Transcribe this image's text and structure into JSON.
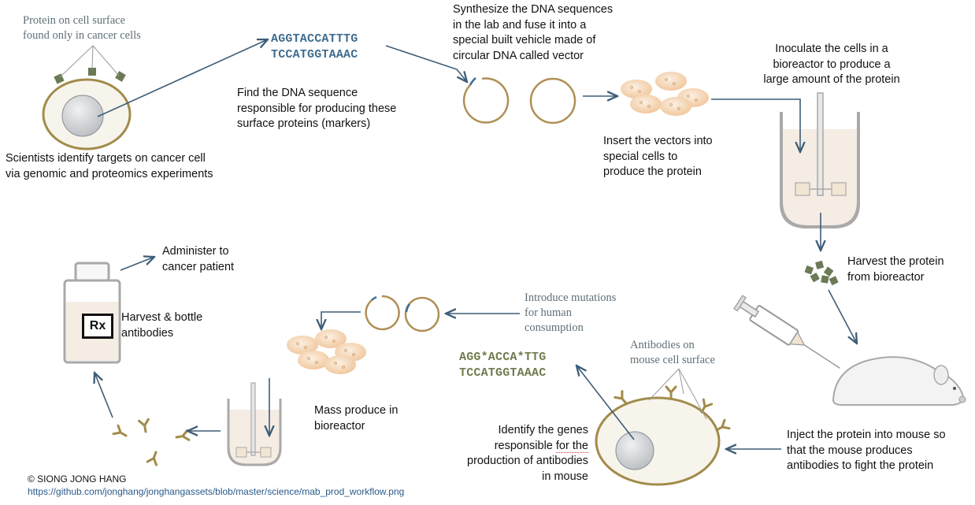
{
  "labels": {
    "protein_surface": "Protein on cell surface\nfound only in cancer cells",
    "identify_targets": "Scientists identify targets on cancer cell\nvia genomic and proteomics experiments",
    "dna_seq_top": "AGGTACCATTTG",
    "dna_seq_bottom": "TCCATGGTAAAC",
    "find_dna": "Find the DNA sequence\nresponsible for producing these\nsurface proteins (markers)",
    "synthesize": "Synthesize the DNA sequences\nin the lab and fuse it into a\nspecial built vehicle made of\ncircular DNA called vector",
    "insert_vectors": "Insert the vectors into\nspecial cells to\nproduce the protein",
    "inoculate": "Inoculate the cells in a\nbioreactor to produce a\nlarge amount of the protein",
    "harvest_protein": "Harvest the protein\nfrom bioreactor",
    "inject_mouse": "Inject the protein into mouse so\nthat the mouse produces\nantibodies to fight the protein",
    "antibodies_surface": "Antibodies on\nmouse cell surface",
    "identify_genes_pre": "Identify the genes\nresponsible ",
    "identify_genes_mark": "for the",
    "identify_genes_post": "\nproduction of antibodies\nin mouse",
    "mut_seq_top": "AGG*ACCA*TTG",
    "mut_seq_bottom": "TCCATGGTAAAC",
    "introduce_mutations": "Introduce mutations\nfor human\nconsumption",
    "mass_produce": "Mass produce in\nbioreactor",
    "harvest_bottle": "Harvest & bottle\nantibodies",
    "rx": "Rx",
    "administer": "Administer to\ncancer patient",
    "copyright": "© SIONG JONG HANG",
    "url": "https://github.com/jonghang/jonghangassets/blob/master/science/mab_prod_workflow.png"
  },
  "colors": {
    "arrow": "#3d5d78",
    "cell_outline": "#a28b4a",
    "cell_fill": "#f7f4ec",
    "nucleus": "#c9cdd0",
    "vector_ring": "#b08f55",
    "bioreactor": "#a9a9a9",
    "bioreactor_fill": "#f5ece4",
    "producer_cells": "#f3c79f",
    "protein": "#6c7a55",
    "antibody": "#a28b4a"
  }
}
